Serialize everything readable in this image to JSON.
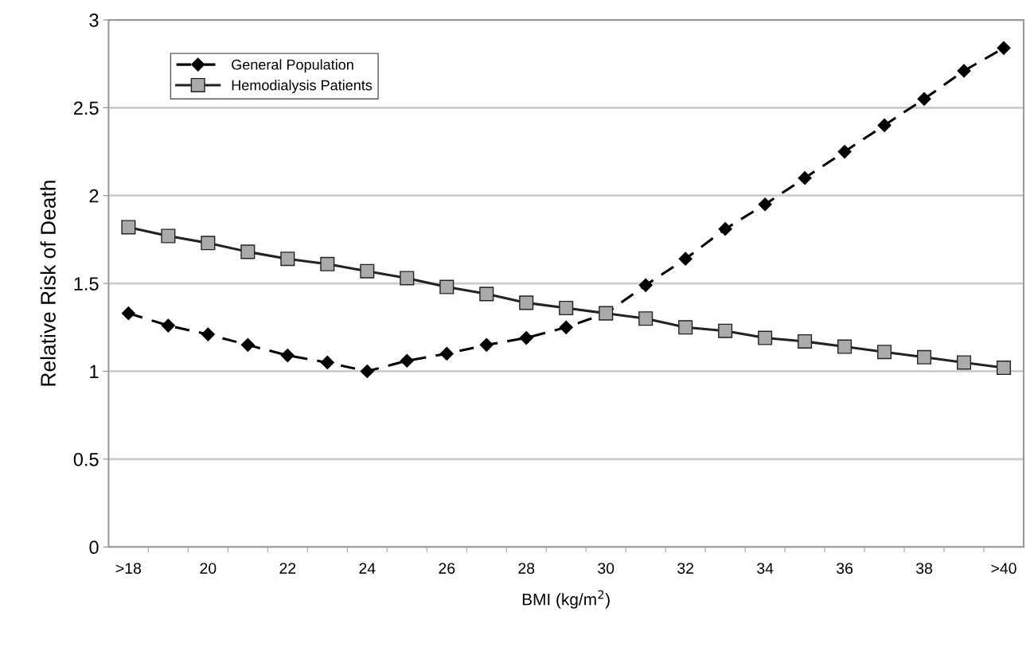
{
  "chart_data": {
    "type": "line",
    "xlabel": "BMI (kg/m$^{2}$)",
    "ylabel": "Relative Risk of Death",
    "categories": [
      ">18",
      null,
      "20",
      null,
      "22",
      null,
      "24",
      null,
      "26",
      null,
      "28",
      null,
      "30",
      null,
      "32",
      null,
      "34",
      null,
      "36",
      null,
      "38",
      null,
      ">40"
    ],
    "series": [
      {
        "name": "General Population",
        "color": "#000000",
        "marker": "diamond",
        "line_style": "dashed",
        "values": [
          1.33,
          1.26,
          1.21,
          1.15,
          1.09,
          1.05,
          1.0,
          1.06,
          1.1,
          1.15,
          1.19,
          1.25,
          1.33,
          1.49,
          1.64,
          1.81,
          1.95,
          2.1,
          2.25,
          2.4,
          2.55,
          2.71,
          2.84
        ]
      },
      {
        "name": "Hemodialysis Patients",
        "color": "#222222",
        "marker": "square",
        "line_style": "solid",
        "values": [
          1.82,
          1.77,
          1.73,
          1.68,
          1.64,
          1.61,
          1.57,
          1.53,
          1.48,
          1.44,
          1.39,
          1.36,
          1.33,
          1.3,
          1.25,
          1.23,
          1.19,
          1.17,
          1.14,
          1.11,
          1.08,
          1.05,
          1.02
        ]
      }
    ],
    "ylim": [
      0,
      3
    ],
    "yticks": [
      0,
      0.5,
      1,
      1.5,
      2,
      2.5,
      3
    ],
    "grid": "y",
    "legend": "top left"
  }
}
